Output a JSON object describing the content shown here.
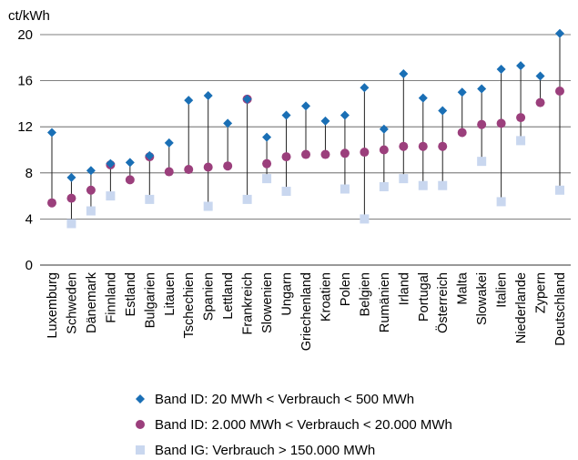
{
  "chart_data": {
    "type": "scatter",
    "unit": "ct/kWh",
    "ylim": [
      0,
      20
    ],
    "yticks": [
      0,
      4,
      8,
      12,
      16,
      20
    ],
    "grid": true,
    "legend_position": "bottom",
    "categories": [
      "Luxemburg",
      "Schweden",
      "Dänemark",
      "Finnland",
      "Estland",
      "Bulgarien",
      "Litauen",
      "Tschechien",
      "Spanien",
      "Lettland",
      "Frankreich",
      "Slowenien",
      "Ungarn",
      "Griechenland",
      "Kroatien",
      "Polen",
      "Belgien",
      "Rumänien",
      "Irland",
      "Portugal",
      "Österreich",
      "Malta",
      "Slowakei",
      "Italien",
      "Niederlande",
      "Zypern",
      "Deutschland"
    ],
    "series": [
      {
        "name": "Band ID: 20 MWh < Verbrauch < 500 MWh",
        "marker": "diamond",
        "color": "#1a6fb5",
        "values": [
          11.5,
          7.6,
          8.2,
          8.8,
          8.9,
          9.5,
          10.6,
          14.3,
          14.7,
          12.3,
          14.4,
          11.1,
          13.0,
          13.8,
          12.5,
          13.0,
          15.4,
          11.8,
          16.6,
          14.5,
          13.4,
          15.0,
          15.3,
          17.0,
          17.3,
          16.4,
          20.1
        ]
      },
      {
        "name": "Band ID: 2.000 MWh < Verbrauch < 20.000 MWh",
        "marker": "circle",
        "color": "#9b3f7c",
        "values": [
          5.4,
          5.8,
          6.5,
          8.7,
          7.4,
          9.4,
          8.1,
          8.3,
          8.5,
          8.6,
          14.4,
          8.8,
          9.4,
          9.6,
          9.6,
          9.7,
          9.8,
          10.0,
          10.3,
          10.3,
          10.3,
          11.5,
          12.2,
          12.3,
          12.8,
          14.1,
          15.1
        ]
      },
      {
        "name": "Band IG: Verbrauch > 150.000 MWh",
        "marker": "square",
        "color": "#c9d7ef",
        "values": [
          null,
          3.6,
          4.7,
          6.0,
          null,
          5.7,
          null,
          null,
          5.1,
          null,
          5.7,
          7.5,
          6.4,
          null,
          null,
          6.6,
          4.0,
          6.8,
          7.5,
          6.9,
          6.9,
          null,
          9.0,
          5.5,
          10.8,
          null,
          6.5
        ]
      }
    ]
  }
}
